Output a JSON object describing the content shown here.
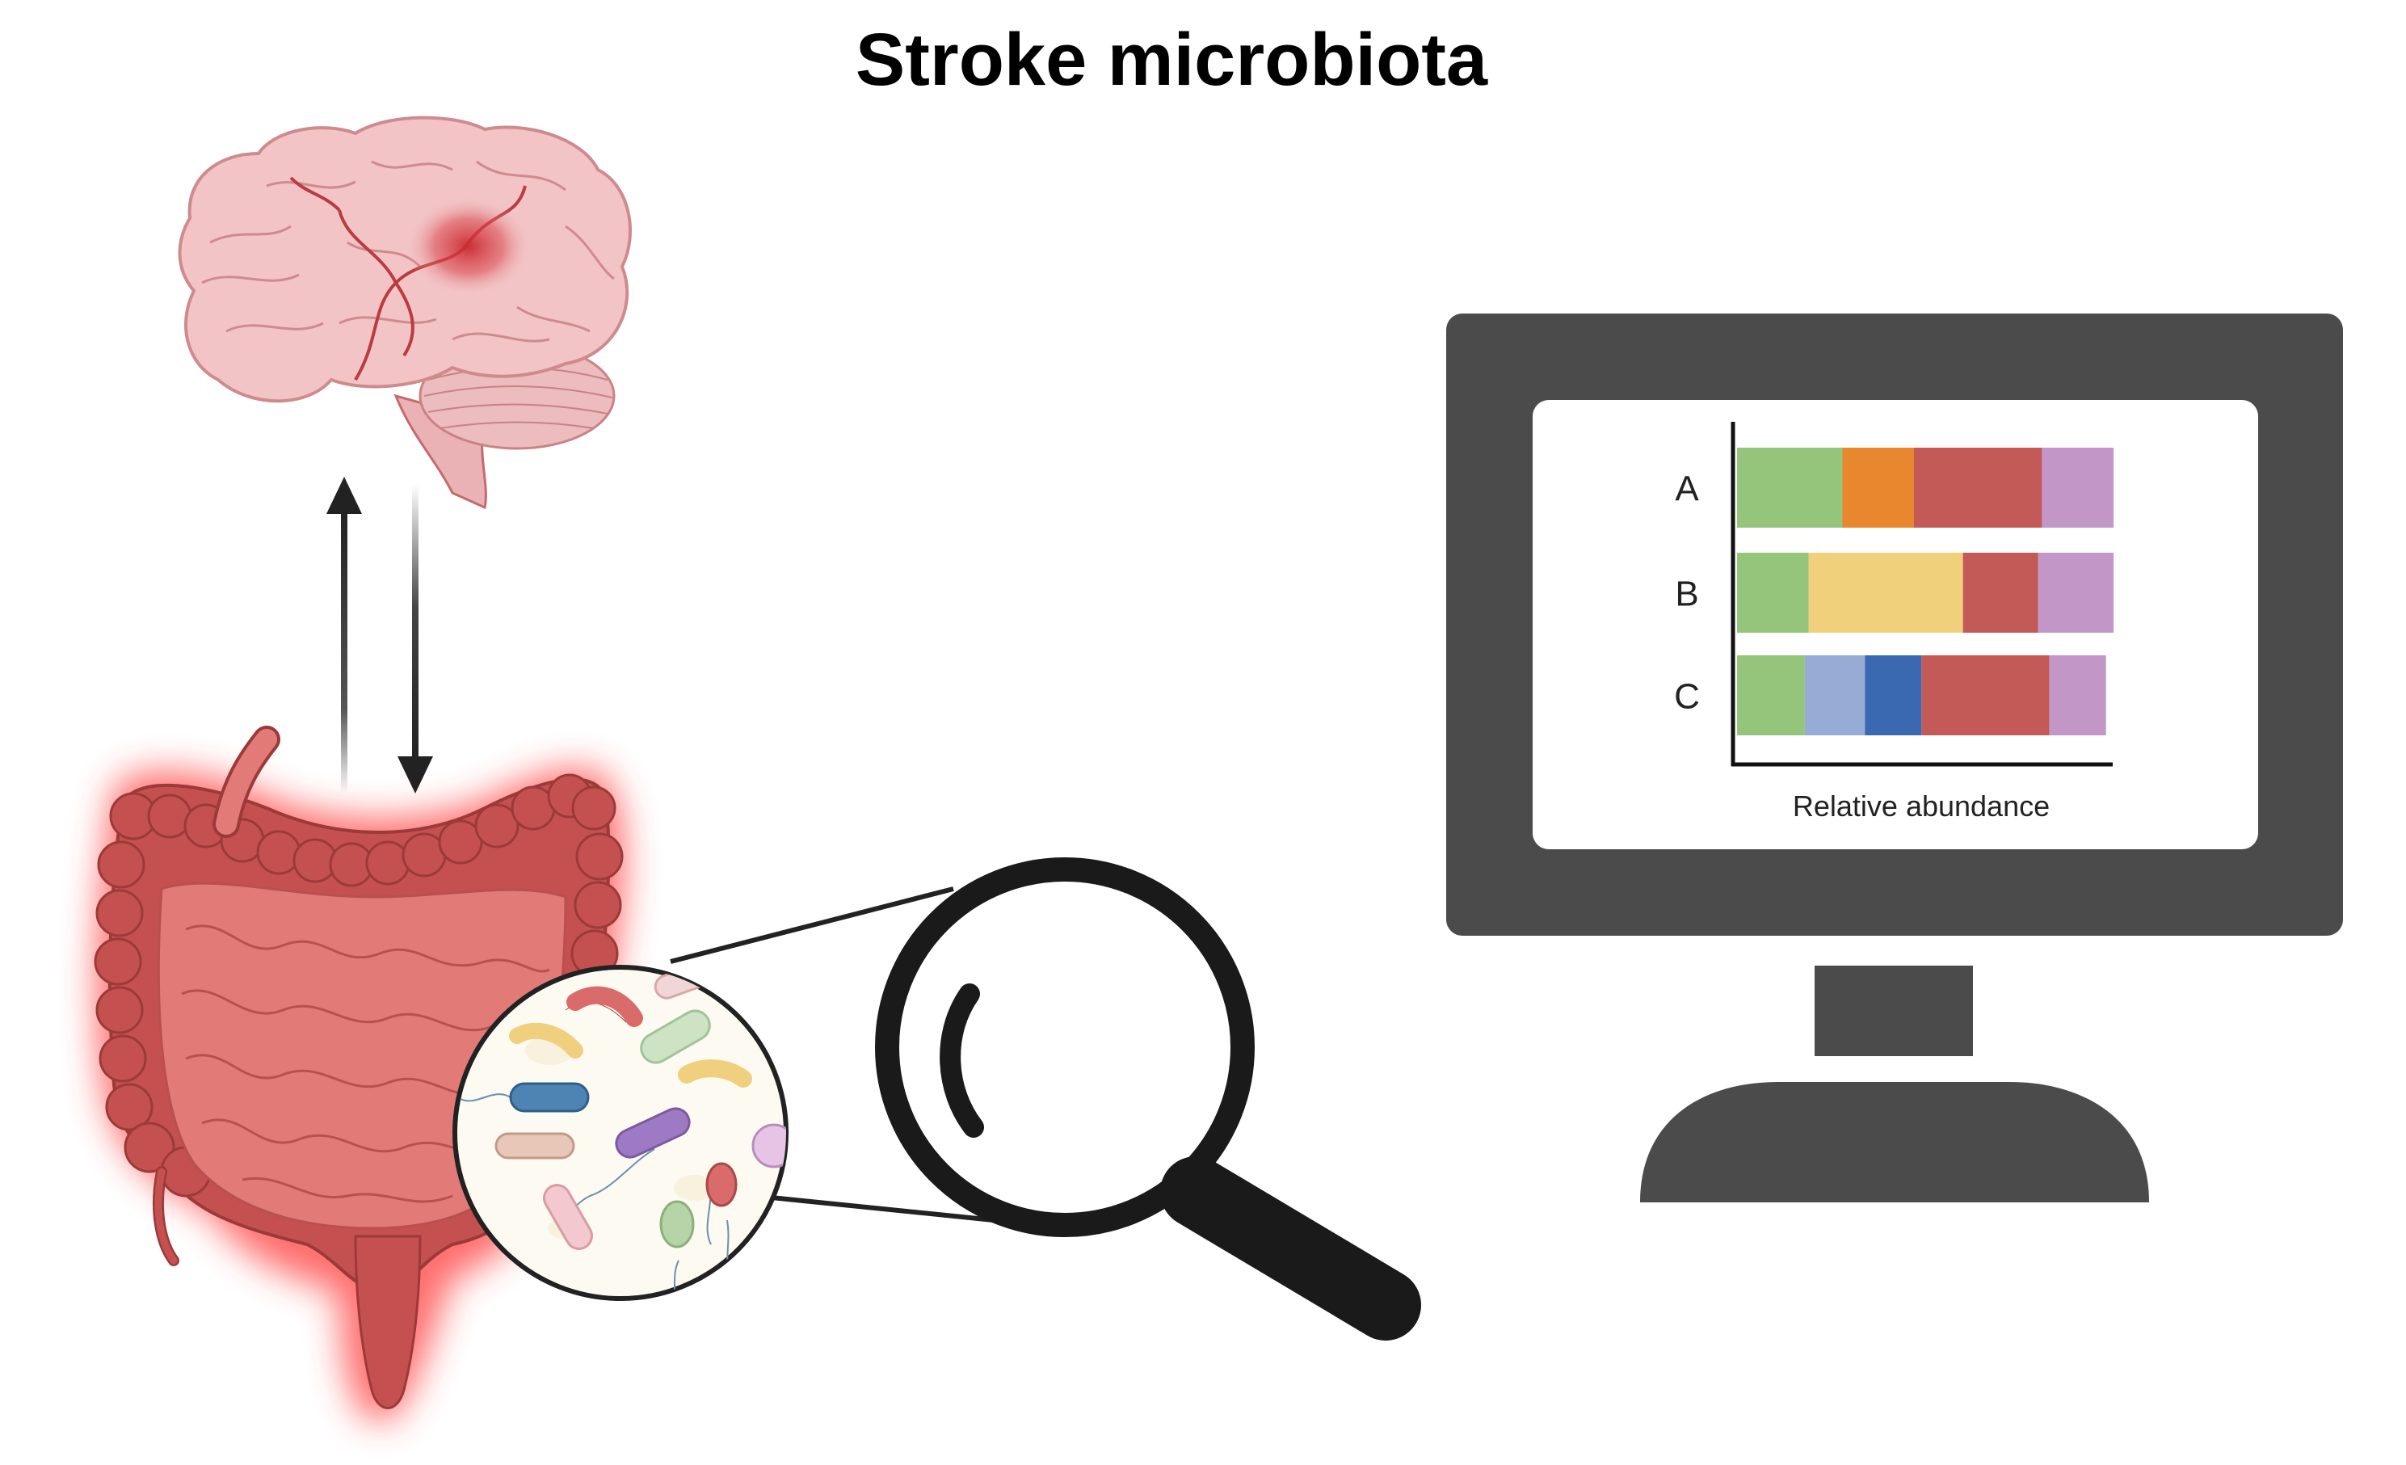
{
  "title": "Stroke microbiota",
  "icons": {
    "brain": "brain-with-infarct-icon",
    "gut": "inflamed-intestine-icon",
    "zoom_circle": "gut-bacteria-zoom-icon",
    "magnifier": "magnifying-glass-icon",
    "monitor": "computer-monitor-icon"
  },
  "arrows": {
    "up": "gut-to-brain-arrow",
    "down": "brain-to-gut-arrow"
  },
  "colors": {
    "brain": "#f2c4c6",
    "infarct": "#c9282e",
    "gut": "#d96b6b",
    "colon": "#c4514f",
    "glow": "#ff3b3b",
    "monitor": "#4a4b4a",
    "screen": "#ffffff"
  },
  "chart_data": {
    "type": "bar",
    "orientation": "horizontal",
    "stacked": true,
    "categories": [
      "A",
      "B",
      "C"
    ],
    "xlabel": "Relative abundance",
    "ylabel": "",
    "segments": [
      [
        {
          "value": 0.28,
          "color": "#95c47b"
        },
        {
          "value": 0.19,
          "color": "#e8872d"
        },
        {
          "value": 0.34,
          "color": "#c35a57"
        },
        {
          "value": 0.19,
          "color": "#c396c8"
        }
      ],
      [
        {
          "value": 0.19,
          "color": "#95c47b"
        },
        {
          "value": 0.41,
          "color": "#f0d07b"
        },
        {
          "value": 0.2,
          "color": "#c35a57"
        },
        {
          "value": 0.2,
          "color": "#c396c8"
        }
      ],
      [
        {
          "value": 0.18,
          "color": "#95c47b"
        },
        {
          "value": 0.16,
          "color": "#97acd5"
        },
        {
          "value": 0.15,
          "color": "#3a68b1"
        },
        {
          "value": 0.34,
          "color": "#c35a57"
        },
        {
          "value": 0.15,
          "color": "#c396c8"
        }
      ]
    ]
  }
}
